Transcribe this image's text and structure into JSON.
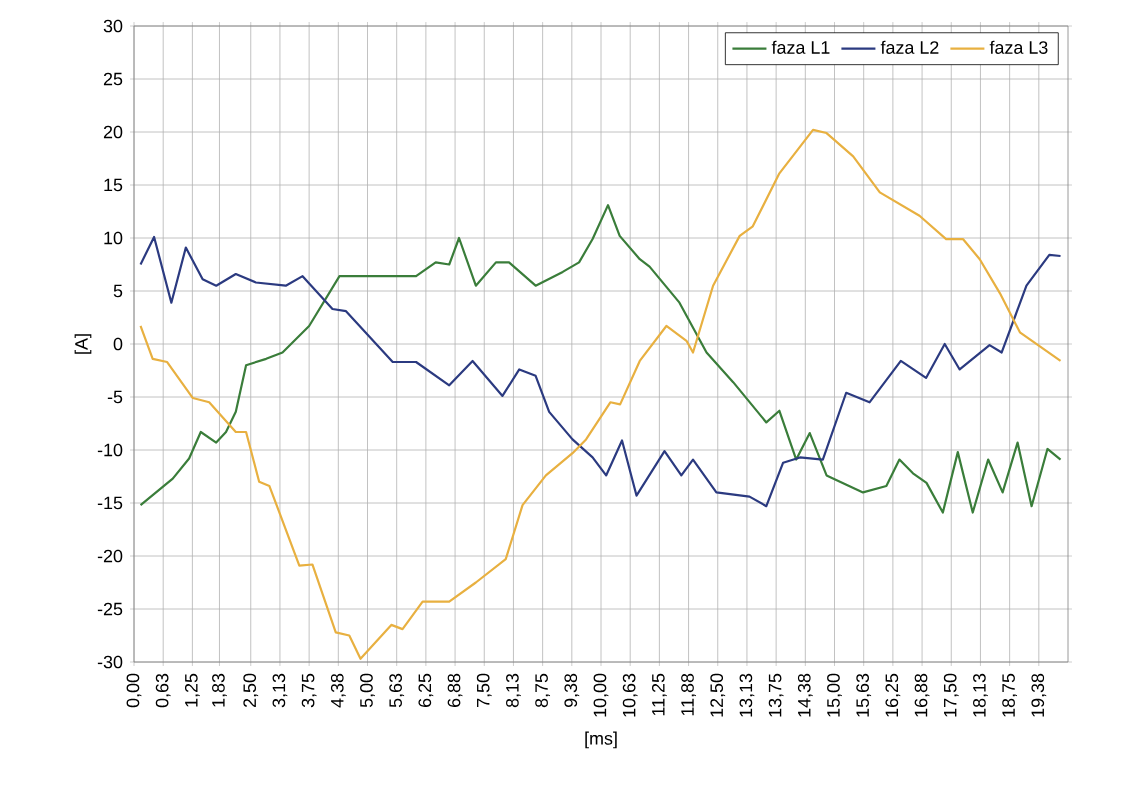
{
  "chart_data": {
    "type": "line",
    "xlabel": "[ms]",
    "ylabel": "[A]",
    "xlim": [
      0,
      20
    ],
    "ylim": [
      -30,
      30
    ],
    "xticks": [
      {
        "value": 0,
        "label": "0,00"
      },
      {
        "value": 0.625,
        "label": "0,63"
      },
      {
        "value": 1.25,
        "label": "1,25"
      },
      {
        "value": 1.83,
        "label": "1,83"
      },
      {
        "value": 2.5,
        "label": "2,50"
      },
      {
        "value": 3.125,
        "label": "3,13"
      },
      {
        "value": 3.75,
        "label": "3,75"
      },
      {
        "value": 4.375,
        "label": "4,38"
      },
      {
        "value": 5,
        "label": "5,00"
      },
      {
        "value": 5.625,
        "label": "5,63"
      },
      {
        "value": 6.25,
        "label": "6,25"
      },
      {
        "value": 6.875,
        "label": "6,88"
      },
      {
        "value": 7.5,
        "label": "7,50"
      },
      {
        "value": 8.125,
        "label": "8,13"
      },
      {
        "value": 8.75,
        "label": "8,75"
      },
      {
        "value": 9.375,
        "label": "9,38"
      },
      {
        "value": 10,
        "label": "10,00"
      },
      {
        "value": 10.625,
        "label": "10,63"
      },
      {
        "value": 11.25,
        "label": "11,25"
      },
      {
        "value": 11.875,
        "label": "11,88"
      },
      {
        "value": 12.5,
        "label": "12,50"
      },
      {
        "value": 13.125,
        "label": "13,13"
      },
      {
        "value": 13.75,
        "label": "13,75"
      },
      {
        "value": 14.375,
        "label": "14,38"
      },
      {
        "value": 15,
        "label": "15,00"
      },
      {
        "value": 15.625,
        "label": "15,63"
      },
      {
        "value": 16.25,
        "label": "16,25"
      },
      {
        "value": 16.875,
        "label": "16,88"
      },
      {
        "value": 17.5,
        "label": "17,50"
      },
      {
        "value": 18.125,
        "label": "18,13"
      },
      {
        "value": 18.75,
        "label": "18,75"
      },
      {
        "value": 19.375,
        "label": "19,38"
      }
    ],
    "yticks": [
      -30,
      -25,
      -20,
      -15,
      -10,
      -5,
      0,
      5,
      10,
      15,
      20,
      25,
      30
    ],
    "grid": true,
    "legend": "top right",
    "series": [
      {
        "name": "faza L1",
        "color": "#3a7d3a",
        "x": [
          0.14,
          0.83,
          1.18,
          1.43,
          1.76,
          1.97,
          2.18,
          2.4,
          2.83,
          3.18,
          3.75,
          4.4,
          4.97,
          6.04,
          6.46,
          6.75,
          6.96,
          7.32,
          7.75,
          8.03,
          8.6,
          9.18,
          9.53,
          9.82,
          10.15,
          10.4,
          10.83,
          11.04,
          11.68,
          12.26,
          12.83,
          13.54,
          13.82,
          14.18,
          14.47,
          14.83,
          15.61,
          16.11,
          16.39,
          16.68,
          16.97,
          17.32,
          17.64,
          17.96,
          18.29,
          18.6,
          18.92,
          19.22,
          19.56,
          19.84
        ],
        "values": [
          -15.2,
          -12.7,
          -10.8,
          -8.3,
          -9.3,
          -8.3,
          -6.4,
          -2.0,
          -1.4,
          -0.8,
          1.7,
          6.4,
          6.4,
          6.4,
          7.7,
          7.5,
          10.0,
          5.5,
          7.7,
          7.7,
          5.5,
          6.8,
          7.7,
          9.9,
          13.1,
          10.2,
          8.0,
          7.3,
          3.9,
          -0.8,
          -3.6,
          -7.4,
          -6.3,
          -10.9,
          -8.4,
          -12.4,
          -14.0,
          -13.4,
          -10.9,
          -12.2,
          -13.1,
          -15.9,
          -10.2,
          -15.9,
          -10.9,
          -14.0,
          -9.3,
          -15.3,
          -9.9,
          -10.9
        ]
      },
      {
        "name": "faza L2",
        "color": "#2b3a80",
        "x": [
          0.14,
          0.43,
          0.8,
          1.11,
          1.47,
          1.76,
          2.18,
          2.61,
          3.25,
          3.61,
          4.25,
          4.54,
          5.54,
          6.04,
          6.75,
          7.25,
          7.89,
          8.25,
          8.6,
          8.89,
          9.39,
          9.82,
          10.11,
          10.45,
          10.76,
          11.36,
          11.72,
          11.97,
          12.47,
          13.18,
          13.54,
          13.9,
          14.26,
          14.75,
          15.25,
          15.75,
          16.42,
          16.96,
          17.36,
          17.68,
          18.32,
          18.58,
          19.11,
          19.6,
          19.84
        ],
        "values": [
          7.5,
          10.1,
          3.9,
          9.1,
          6.1,
          5.5,
          6.6,
          5.8,
          5.5,
          6.4,
          3.3,
          3.1,
          -1.7,
          -1.7,
          -3.9,
          -1.6,
          -4.9,
          -2.4,
          -3.0,
          -6.4,
          -9.0,
          -10.7,
          -12.4,
          -9.1,
          -14.3,
          -10.1,
          -12.4,
          -10.9,
          -14.0,
          -14.4,
          -15.3,
          -11.2,
          -10.7,
          -10.9,
          -4.6,
          -5.5,
          -1.6,
          -3.2,
          0.0,
          -2.4,
          -0.1,
          -0.8,
          5.5,
          8.4,
          8.3
        ]
      },
      {
        "name": "faza L3",
        "color": "#e8b040",
        "x": [
          0.14,
          0.4,
          0.71,
          1.26,
          1.61,
          2.18,
          2.4,
          2.68,
          2.9,
          3.54,
          3.82,
          4.32,
          4.61,
          4.85,
          5.51,
          5.75,
          6.18,
          6.75,
          7.32,
          7.96,
          8.32,
          8.82,
          9.39,
          9.68,
          10.2,
          10.41,
          10.83,
          11.4,
          11.83,
          11.97,
          12.4,
          12.97,
          13.25,
          13.82,
          14.54,
          14.83,
          15.4,
          15.97,
          16.82,
          17.39,
          17.75,
          18.11,
          18.54,
          18.97,
          19.84
        ],
        "values": [
          1.7,
          -1.4,
          -1.7,
          -5.1,
          -5.5,
          -8.3,
          -8.3,
          -13.0,
          -13.4,
          -20.9,
          -20.8,
          -27.2,
          -27.5,
          -29.7,
          -26.5,
          -26.9,
          -24.3,
          -24.3,
          -22.5,
          -20.3,
          -15.2,
          -12.4,
          -10.3,
          -9.0,
          -5.5,
          -5.7,
          -1.6,
          1.7,
          0.3,
          -0.8,
          5.5,
          10.2,
          11.1,
          16.1,
          20.2,
          19.9,
          17.7,
          14.3,
          12.1,
          9.9,
          9.9,
          8.0,
          4.8,
          1.1,
          -1.6
        ]
      }
    ]
  }
}
